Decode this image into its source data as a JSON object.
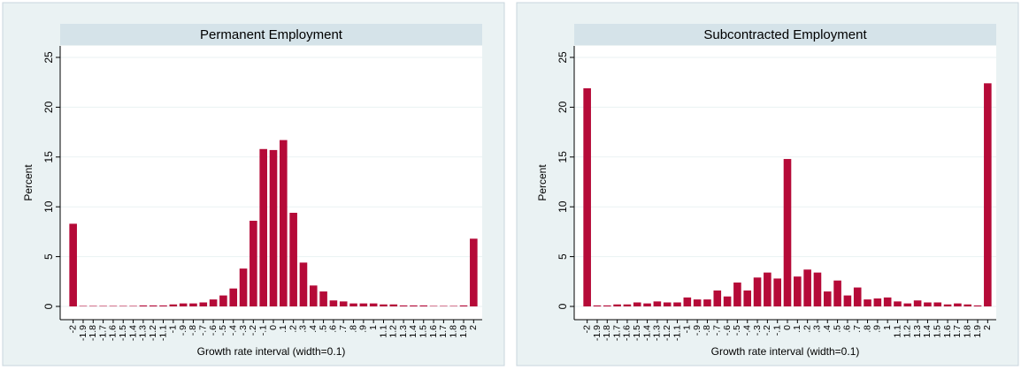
{
  "chart_data": [
    {
      "type": "bar",
      "title": "Permanent Employment",
      "y_label": "Percent",
      "x_label": "Growth rate interval (width=0.1)",
      "categories": [
        "-2",
        "-1.9",
        "-1.8",
        "-1.7",
        "-1.6",
        "-1.5",
        "-1.4",
        "-1.3",
        "-1.2",
        "-1.1",
        "-1",
        "-.9",
        "-.8",
        "-.7",
        "-.6",
        "-.5",
        "-.4",
        "-.3",
        "-.2",
        "-.1",
        "0",
        ".1",
        ".2",
        ".3",
        ".4",
        ".5",
        ".6",
        ".7",
        ".8",
        ".9",
        "1",
        "1.1",
        "1.2",
        "1.3",
        "1.4",
        "1.5",
        "1.6",
        "1.7",
        "1.8",
        "1.9",
        "2"
      ],
      "values": [
        8.3,
        0.05,
        0.05,
        0.05,
        0.05,
        0.05,
        0.05,
        0.1,
        0.1,
        0.1,
        0.2,
        0.3,
        0.3,
        0.4,
        0.7,
        1.1,
        1.8,
        3.8,
        8.6,
        15.8,
        15.7,
        16.7,
        9.4,
        4.4,
        2.1,
        1.5,
        0.6,
        0.5,
        0.3,
        0.3,
        0.3,
        0.2,
        0.2,
        0.1,
        0.1,
        0.1,
        0.05,
        0.05,
        0.05,
        0.1,
        6.8
      ],
      "color": "#b50a38",
      "ylim": [
        0,
        25
      ],
      "yticks": [
        0,
        5,
        10,
        15,
        20,
        25
      ],
      "grid": true
    },
    {
      "type": "bar",
      "title": "Subcontracted Employment",
      "y_label": "Percent",
      "x_label": "Growth rate interval (width=0.1)",
      "categories": [
        "-2",
        "-1.9",
        "-1.8",
        "-1.7",
        "-1.6",
        "-1.5",
        "-1.4",
        "-1.3",
        "-1.2",
        "-1.1",
        "-1",
        "-.9",
        "-.8",
        "-.7",
        "-.6",
        "-.5",
        "-.4",
        "-.3",
        "-.2",
        "-.1",
        "0",
        ".1",
        ".2",
        ".3",
        ".4",
        ".5",
        ".6",
        ".7",
        ".8",
        ".9",
        "1",
        "1.1",
        "1.2",
        "1.3",
        "1.4",
        "1.5",
        "1.6",
        "1.7",
        "1.8",
        "1.9",
        "2"
      ],
      "values": [
        21.9,
        0.1,
        0.1,
        0.2,
        0.2,
        0.4,
        0.3,
        0.5,
        0.4,
        0.4,
        0.9,
        0.7,
        0.7,
        1.6,
        1.0,
        2.4,
        1.6,
        2.9,
        3.4,
        2.8,
        14.8,
        3.0,
        3.7,
        3.4,
        1.5,
        2.6,
        1.1,
        1.9,
        0.7,
        0.8,
        0.9,
        0.5,
        0.3,
        0.6,
        0.4,
        0.4,
        0.2,
        0.3,
        0.2,
        0.1,
        22.4
      ],
      "color": "#b50a38",
      "ylim": [
        0,
        25
      ],
      "yticks": [
        0,
        5,
        10,
        15,
        20,
        25
      ],
      "grid": true
    }
  ]
}
